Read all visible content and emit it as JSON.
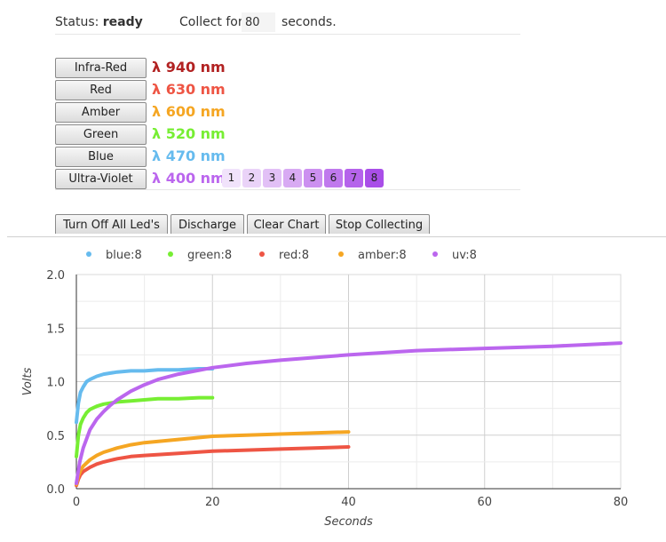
{
  "status": {
    "label": "Status:",
    "value": "ready",
    "collect_label": "Collect for:",
    "collect_value": "80",
    "collect_unit": "seconds."
  },
  "leds": [
    {
      "button": "Infra-Red",
      "wavelength": "λ 940 nm",
      "color": "#b22222"
    },
    {
      "button": "Red",
      "wavelength": "λ 630 nm",
      "color": "#ee5544"
    },
    {
      "button": "Amber",
      "wavelength": "λ 600 nm",
      "color": "#f5a623"
    },
    {
      "button": "Green",
      "wavelength": "λ 520 nm",
      "color": "#77ee33"
    },
    {
      "button": "Blue",
      "wavelength": "λ 470 nm",
      "color": "#66bbee"
    },
    {
      "button": "Ultra-Violet",
      "wavelength": "λ 400 nm",
      "color": "#bb66ee"
    }
  ],
  "intensity_levels": [
    "1",
    "2",
    "3",
    "4",
    "5",
    "6",
    "7",
    "8"
  ],
  "intensity_colors": [
    "#f1e3fb",
    "#ead3f8",
    "#e2c0f6",
    "#d8aaf3",
    "#cc90f0",
    "#c079ed",
    "#b563eb",
    "#a94ee8"
  ],
  "actions": [
    "Turn Off All Led's",
    "Discharge",
    "Clear Chart",
    "Stop Collecting"
  ],
  "chart_data": {
    "type": "line",
    "xlabel": "Seconds",
    "ylabel": "Volts",
    "xlim": [
      0,
      80
    ],
    "ylim": [
      0,
      2.0
    ],
    "x_ticks": [
      "0",
      "20",
      "40",
      "60",
      "80"
    ],
    "y_ticks": [
      "0.0",
      "0.5",
      "1.0",
      "1.5",
      "2.0"
    ],
    "grid": true,
    "legend_position": "top",
    "series": [
      {
        "name": "blue:8",
        "color": "#66bbee",
        "x": [
          0,
          0.3,
          0.6,
          1,
          1.5,
          2,
          3,
          4,
          5,
          6,
          8,
          10,
          12,
          15,
          18,
          20
        ],
        "y": [
          0.62,
          0.8,
          0.9,
          0.95,
          1.0,
          1.02,
          1.05,
          1.07,
          1.08,
          1.09,
          1.1,
          1.1,
          1.11,
          1.11,
          1.12,
          1.12
        ]
      },
      {
        "name": "green:8",
        "color": "#77ee33",
        "x": [
          0,
          0.3,
          0.6,
          1,
          1.5,
          2,
          3,
          4,
          5,
          6,
          8,
          10,
          12,
          15,
          18,
          20
        ],
        "y": [
          0.3,
          0.5,
          0.6,
          0.66,
          0.71,
          0.74,
          0.77,
          0.79,
          0.8,
          0.81,
          0.82,
          0.83,
          0.84,
          0.84,
          0.85,
          0.85
        ]
      },
      {
        "name": "red:8",
        "color": "#ee5544",
        "x": [
          0,
          0.3,
          0.6,
          1,
          2,
          3,
          4,
          6,
          8,
          10,
          15,
          20,
          25,
          30,
          35,
          40
        ],
        "y": [
          0.03,
          0.09,
          0.13,
          0.16,
          0.2,
          0.23,
          0.25,
          0.28,
          0.3,
          0.31,
          0.33,
          0.35,
          0.36,
          0.37,
          0.38,
          0.39
        ]
      },
      {
        "name": "amber:8",
        "color": "#f5a623",
        "x": [
          0,
          0.3,
          0.6,
          1,
          2,
          3,
          4,
          6,
          8,
          10,
          15,
          20,
          25,
          30,
          35,
          40
        ],
        "y": [
          0.04,
          0.12,
          0.17,
          0.21,
          0.27,
          0.31,
          0.34,
          0.38,
          0.41,
          0.43,
          0.46,
          0.49,
          0.5,
          0.51,
          0.52,
          0.53
        ]
      },
      {
        "name": "uv:8",
        "color": "#bb66ee",
        "x": [
          0,
          0.5,
          1,
          2,
          3,
          4,
          5,
          6,
          8,
          10,
          12,
          15,
          20,
          25,
          30,
          40,
          50,
          60,
          70,
          80
        ],
        "y": [
          0.05,
          0.25,
          0.38,
          0.55,
          0.65,
          0.72,
          0.78,
          0.83,
          0.91,
          0.97,
          1.02,
          1.07,
          1.13,
          1.17,
          1.2,
          1.25,
          1.29,
          1.31,
          1.33,
          1.36
        ]
      }
    ]
  }
}
